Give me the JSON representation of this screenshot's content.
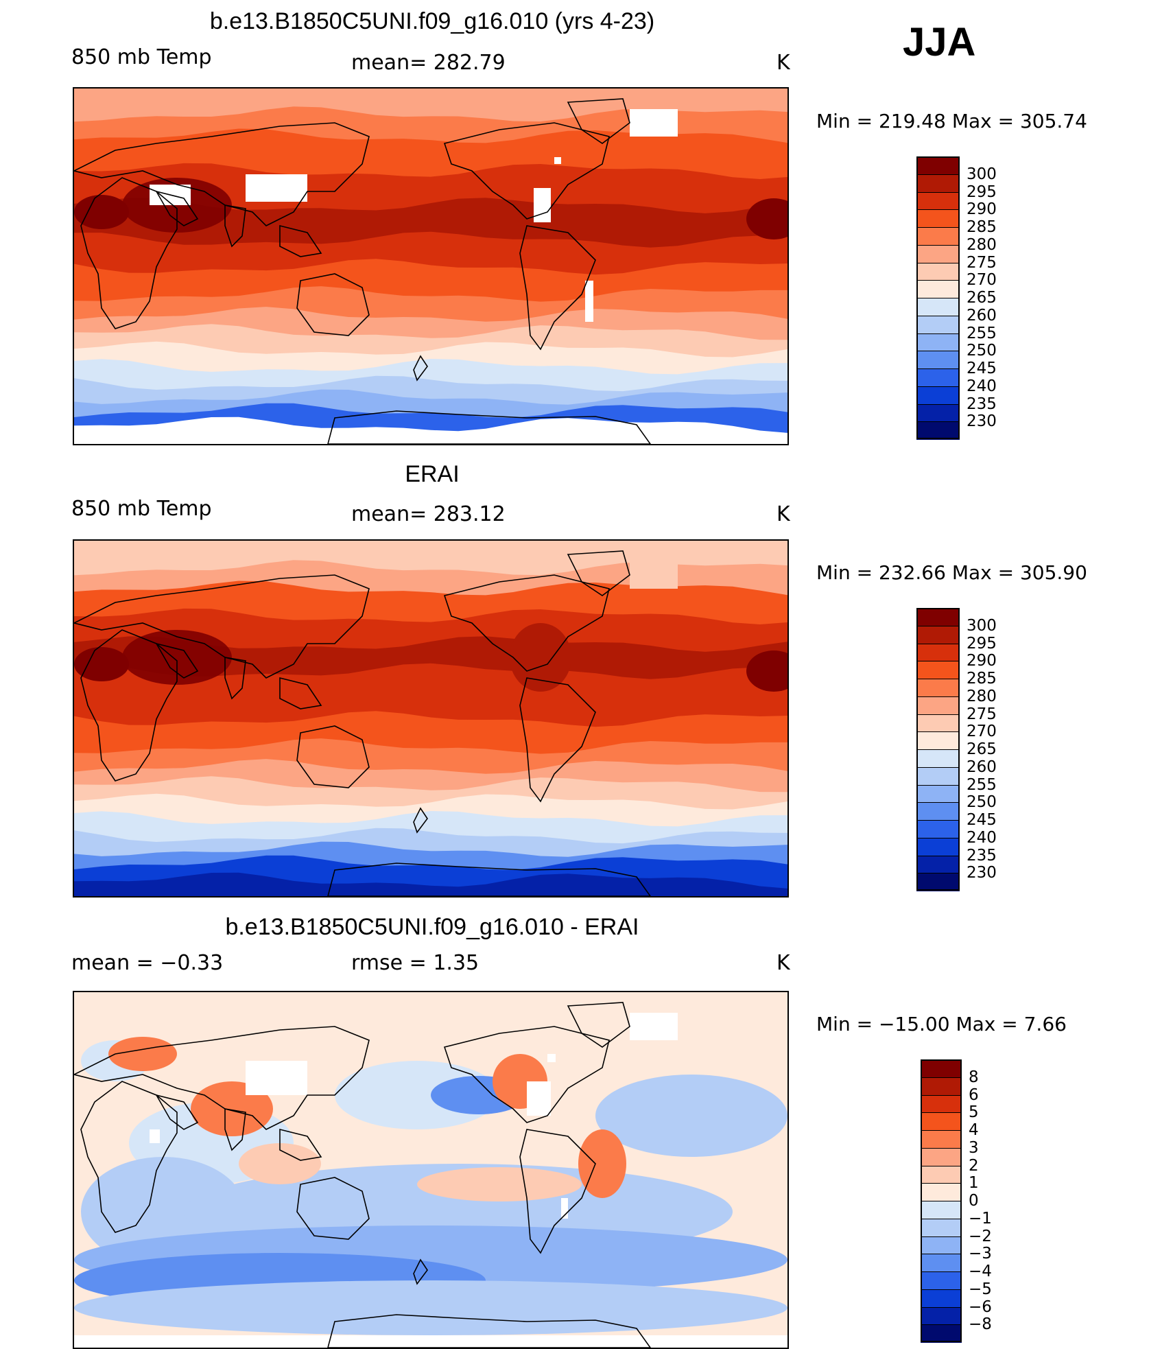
{
  "season": "JJA",
  "panels": [
    {
      "title": "b.e13.B1850C5UNI.f09_g16.010 (yrs 4-23)",
      "left_label": "850 mb Temp",
      "center_label": "mean= 282.79",
      "units": "K",
      "minmax": "Min = 219.48 Max = 305.74",
      "colorbar_labels": [
        "300",
        "295",
        "290",
        "285",
        "280",
        "275",
        "270",
        "265",
        "260",
        "255",
        "250",
        "245",
        "240",
        "235",
        "230"
      ],
      "type": "model"
    },
    {
      "title": "ERAI",
      "left_label": "850 mb Temp",
      "center_label": "mean= 283.12",
      "units": "K",
      "minmax": "Min = 232.66 Max = 305.90",
      "colorbar_labels": [
        "300",
        "295",
        "290",
        "285",
        "280",
        "275",
        "270",
        "265",
        "260",
        "255",
        "250",
        "245",
        "240",
        "235",
        "230"
      ],
      "type": "obs"
    },
    {
      "title": "b.e13.B1850C5UNI.f09_g16.010 - ERAI",
      "left_label": "mean =   −0.33",
      "center_label": "rmse =    1.35",
      "units": "K",
      "minmax": "Min = −15.00 Max =    7.66",
      "colorbar_labels": [
        "8",
        "6",
        "5",
        "4",
        "3",
        "2",
        "1",
        "0",
        "−1",
        "−2",
        "−3",
        "−4",
        "−5",
        "−6",
        "−8"
      ],
      "type": "diff"
    }
  ],
  "colors": {
    "abs_scale": [
      "#7f0000",
      "#b01a05",
      "#d7300c",
      "#f4541c",
      "#fb7b4a",
      "#fca584",
      "#fdcbb3",
      "#feeadc",
      "#d6e6f8",
      "#b3cdf6",
      "#8eb3f5",
      "#5e8ff1",
      "#2c62ea",
      "#0b3fd6",
      "#0421a8",
      "#000a6e"
    ],
    "diff_scale": [
      "#7f0000",
      "#b01a05",
      "#d7300c",
      "#f4541c",
      "#fb7b4a",
      "#fca584",
      "#fdcbb3",
      "#feeadc",
      "#d6e6f8",
      "#b3cdf6",
      "#8eb3f5",
      "#5e8ff1",
      "#2c62ea",
      "#0b3fd6",
      "#0421a8",
      "#000a6e"
    ],
    "missing": "#ffffff",
    "coastline": "#000000"
  }
}
